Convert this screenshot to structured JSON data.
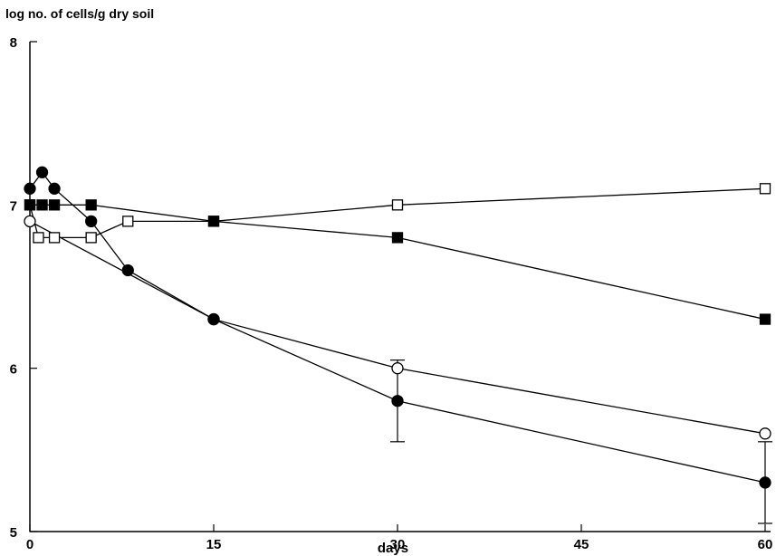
{
  "chart_data": {
    "type": "line",
    "title": "",
    "xlabel": "days",
    "ylabel": "log no. of cells/g dry soil",
    "xlim": [
      0,
      60
    ],
    "ylim": [
      5,
      8
    ],
    "xticks": [
      0,
      15,
      30,
      45,
      60
    ],
    "xtick_labels": [
      "0",
      "15",
      "30",
      "45",
      "60"
    ],
    "yticks": [
      5,
      6,
      7,
      8
    ],
    "ytick_labels": [
      "5",
      "6",
      "7",
      "8"
    ],
    "grid": false,
    "series": [
      {
        "marker": "open-square",
        "points": [
          [
            0,
            7.0
          ],
          [
            0.7,
            6.8
          ],
          [
            2,
            6.8
          ],
          [
            5,
            6.8
          ],
          [
            8,
            6.9
          ],
          [
            15,
            6.9
          ],
          [
            30,
            7.0
          ],
          [
            60,
            7.1
          ]
        ]
      },
      {
        "marker": "filled-square",
        "points": [
          [
            0,
            7.0
          ],
          [
            1,
            7.0
          ],
          [
            2,
            7.0
          ],
          [
            5,
            7.0
          ],
          [
            15,
            6.9
          ],
          [
            30,
            6.8
          ],
          [
            60,
            6.3
          ]
        ]
      },
      {
        "marker": "open-circle",
        "points": [
          [
            0,
            6.9
          ],
          [
            15,
            6.3
          ],
          [
            30,
            6.0
          ],
          [
            60,
            5.6
          ]
        ]
      },
      {
        "marker": "filled-circle",
        "points": [
          [
            0,
            7.1
          ],
          [
            1,
            7.2
          ],
          [
            2,
            7.1
          ],
          [
            5,
            6.9
          ],
          [
            8,
            6.6
          ],
          [
            15,
            6.3
          ],
          [
            30,
            5.8
          ],
          [
            60,
            5.3
          ]
        ]
      }
    ],
    "error_bars": [
      {
        "x": 30,
        "low": 5.55,
        "high": 6.05
      },
      {
        "x": 60,
        "low": 5.05,
        "high": 5.55
      }
    ],
    "colors": {
      "ink": "#000000",
      "background": "#ffffff"
    }
  }
}
